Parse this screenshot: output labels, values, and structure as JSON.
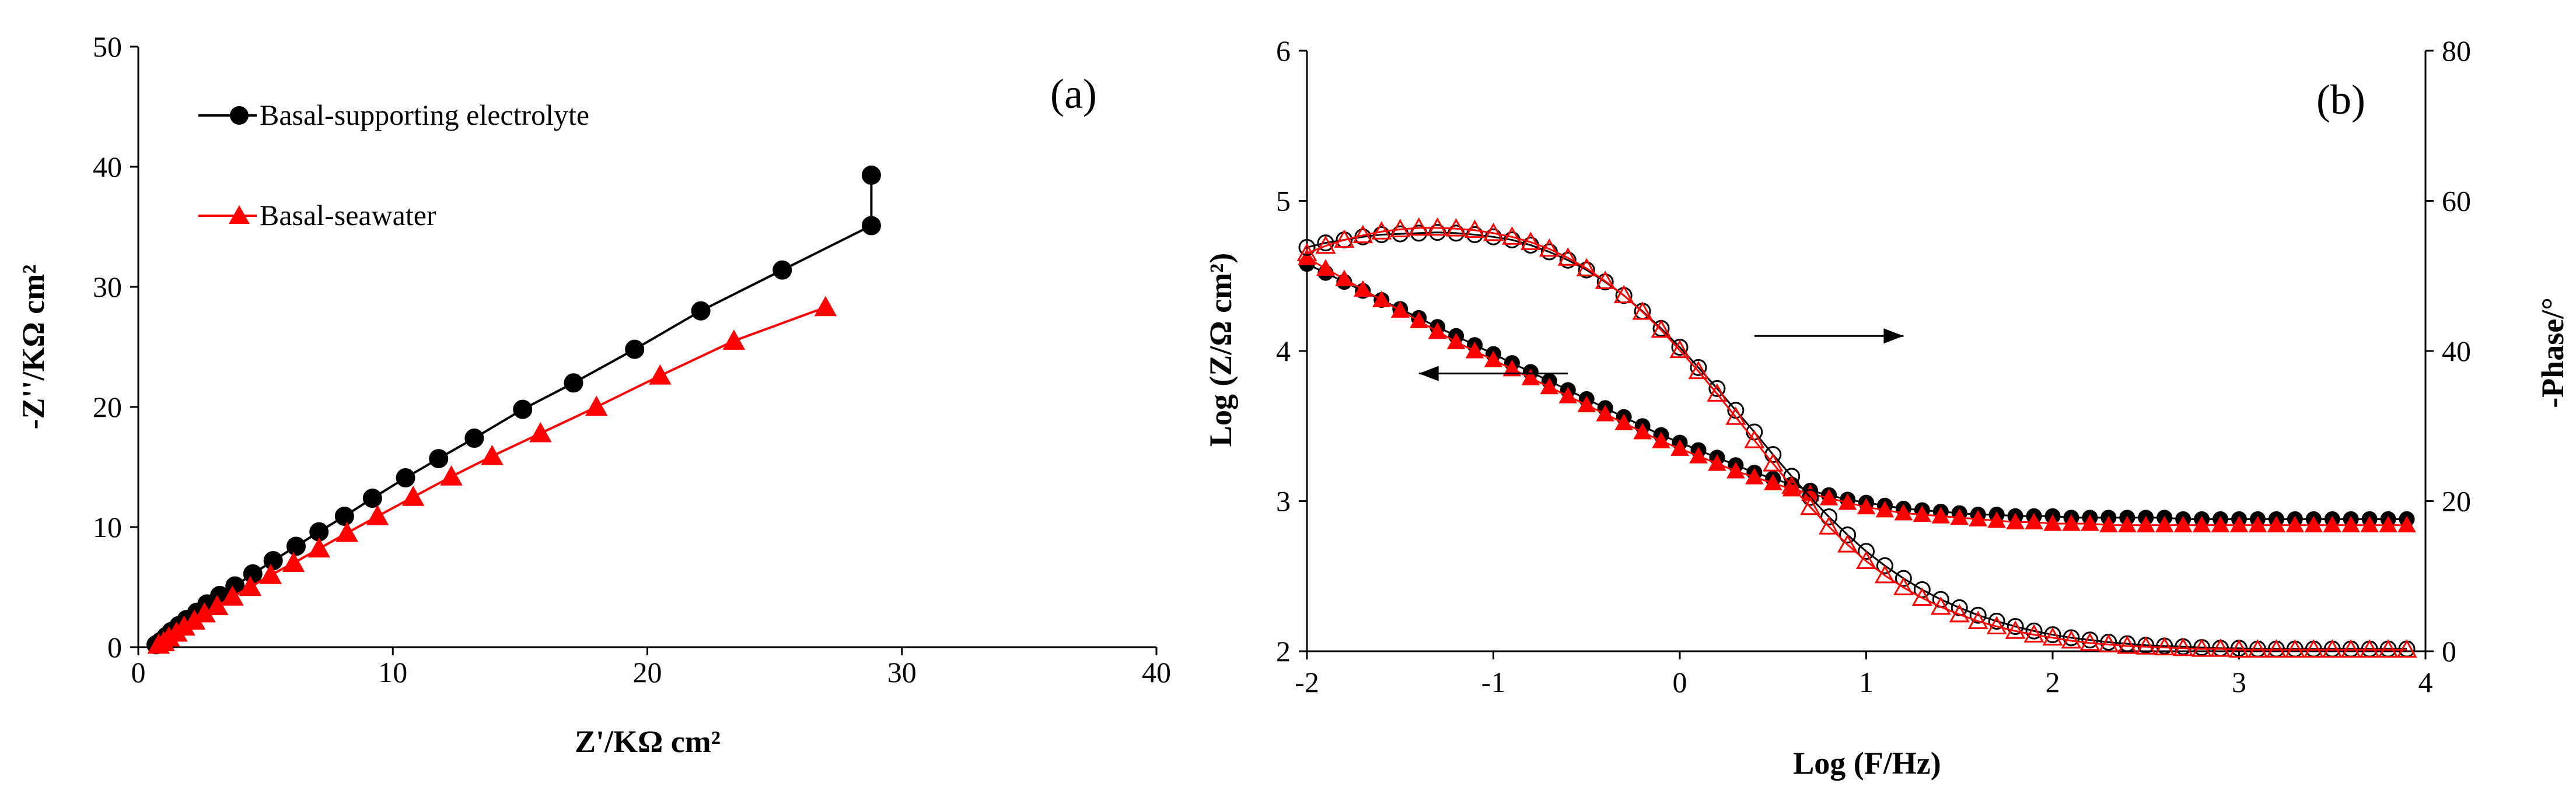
{
  "chart_data": [
    {
      "type": "scatter",
      "panel_label": "(a)",
      "title": "",
      "xlabel": "Z'/KΩ cm²",
      "ylabel": "-Z''/KΩ cm²",
      "xlim": [
        0,
        40
      ],
      "ylim": [
        0,
        50
      ],
      "xticks": [
        "0",
        "10",
        "20",
        "30",
        "40"
      ],
      "yticks": [
        "0",
        "10",
        "20",
        "30",
        "40",
        "50"
      ],
      "legend_position": "top-left",
      "grid": false,
      "series": [
        {
          "name": "Basal-supporting electrolyte",
          "color": "#000000",
          "marker": "circle",
          "x": [
            0.7,
            0.9,
            1.1,
            1.3,
            1.6,
            1.9,
            2.3,
            2.7,
            3.2,
            3.8,
            4.5,
            5.3,
            6.2,
            7.1,
            8.1,
            9.2,
            10.5,
            11.8,
            13.2,
            15.1,
            17.1,
            19.5,
            22.1,
            25.3,
            28.8
          ],
          "y": [
            0.2,
            0.5,
            0.9,
            1.3,
            1.8,
            2.3,
            2.9,
            3.6,
            4.3,
            5.1,
            6.1,
            7.2,
            8.4,
            9.6,
            10.9,
            12.4,
            14.1,
            15.7,
            17.4,
            19.8,
            22.0,
            24.8,
            28.0,
            31.4,
            35.1
          ],
          "x_tail": [],
          "y_tail": []
        },
        {
          "name": "Basal-seawater",
          "color": "#ff0000",
          "marker": "triangle",
          "x": [
            0.8,
            1.0,
            1.2,
            1.5,
            1.8,
            2.2,
            2.6,
            3.1,
            3.7,
            4.4,
            5.2,
            6.1,
            7.1,
            8.2,
            9.4,
            10.8,
            12.3,
            13.9,
            15.8,
            18.0,
            20.5,
            23.4,
            27.0
          ],
          "y": [
            0.2,
            0.4,
            0.8,
            1.2,
            1.7,
            2.2,
            2.8,
            3.4,
            4.2,
            5.0,
            6.0,
            7.0,
            8.2,
            9.5,
            10.9,
            12.5,
            14.2,
            15.9,
            17.8,
            20.0,
            22.6,
            25.5,
            28.3
          ],
          "x_tail": [],
          "y_tail": []
        }
      ],
      "extra_points": {
        "black_x": [
          28.8
        ],
        "black_y": [
          39.3
        ]
      }
    },
    {
      "type": "scatter",
      "panel_label": "(b)",
      "title": "",
      "xlabel": "Log (F/Hz)",
      "ylabel": "Log (Z/Ω cm²)",
      "y2label": "-Phase/°",
      "xlim": [
        -2,
        4
      ],
      "ylim": [
        2,
        6
      ],
      "y2lim": [
        0,
        80
      ],
      "xticks": [
        "-2",
        "-1",
        "0",
        "1",
        "2",
        "3",
        "4"
      ],
      "yticks": [
        "2",
        "3",
        "4",
        "5",
        "6"
      ],
      "y2ticks": [
        "0",
        "20",
        "40",
        "60",
        "80"
      ],
      "grid": false,
      "series": [
        {
          "name": "",
          "color": "#000000",
          "marker": "filled-circle",
          "axis": "left",
          "x": [
            -2.0,
            -1.9,
            -1.8,
            -1.7,
            -1.6,
            -1.5,
            -1.4,
            -1.3,
            -1.2,
            -1.1,
            -1.0,
            -0.9,
            -0.8,
            -0.7,
            -0.6,
            -0.5,
            -0.4,
            -0.3,
            -0.2,
            -0.1,
            0.0,
            0.1,
            0.2,
            0.3,
            0.4,
            0.5,
            0.6,
            0.7,
            0.8,
            0.9,
            1.0,
            1.1,
            1.2,
            1.3,
            1.4,
            1.5,
            1.6,
            1.7,
            1.8,
            1.9,
            2.0,
            2.1,
            2.2,
            2.3,
            2.4,
            2.5,
            2.6,
            2.7,
            2.8,
            2.9,
            3.0,
            3.1,
            3.2,
            3.3,
            3.4,
            3.5,
            3.6,
            3.7,
            3.8,
            3.9
          ],
          "y": [
            4.58,
            4.52,
            4.46,
            4.4,
            4.34,
            4.28,
            4.22,
            4.16,
            4.1,
            4.04,
            3.98,
            3.92,
            3.86,
            3.8,
            3.74,
            3.68,
            3.62,
            3.56,
            3.5,
            3.44,
            3.39,
            3.34,
            3.29,
            3.24,
            3.19,
            3.15,
            3.11,
            3.07,
            3.04,
            3.01,
            2.99,
            2.97,
            2.95,
            2.94,
            2.93,
            2.92,
            2.91,
            2.91,
            2.9,
            2.9,
            2.9,
            2.89,
            2.89,
            2.89,
            2.89,
            2.89,
            2.89,
            2.88,
            2.88,
            2.88,
            2.88,
            2.88,
            2.88,
            2.88,
            2.88,
            2.88,
            2.88,
            2.88,
            2.88,
            2.88
          ]
        },
        {
          "name": "",
          "color": "#ff0000",
          "marker": "filled-triangle",
          "axis": "left",
          "x": [
            -2.0,
            -1.9,
            -1.8,
            -1.7,
            -1.6,
            -1.5,
            -1.4,
            -1.3,
            -1.2,
            -1.1,
            -1.0,
            -0.9,
            -0.8,
            -0.7,
            -0.6,
            -0.5,
            -0.4,
            -0.3,
            -0.2,
            -0.1,
            0.0,
            0.1,
            0.2,
            0.3,
            0.4,
            0.5,
            0.6,
            0.7,
            0.8,
            0.9,
            1.0,
            1.1,
            1.2,
            1.3,
            1.4,
            1.5,
            1.6,
            1.7,
            1.8,
            1.9,
            2.0,
            2.1,
            2.2,
            2.3,
            2.4,
            2.5,
            2.6,
            2.7,
            2.8,
            2.9,
            3.0,
            3.1,
            3.2,
            3.3,
            3.4,
            3.5,
            3.6,
            3.7,
            3.8,
            3.9
          ],
          "y": [
            4.62,
            4.55,
            4.48,
            4.41,
            4.34,
            4.27,
            4.2,
            4.13,
            4.06,
            4.0,
            3.94,
            3.88,
            3.82,
            3.76,
            3.7,
            3.64,
            3.58,
            3.52,
            3.46,
            3.4,
            3.35,
            3.3,
            3.25,
            3.2,
            3.16,
            3.12,
            3.08,
            3.05,
            3.02,
            2.99,
            2.96,
            2.94,
            2.92,
            2.91,
            2.9,
            2.89,
            2.88,
            2.87,
            2.86,
            2.86,
            2.85,
            2.85,
            2.85,
            2.84,
            2.84,
            2.84,
            2.84,
            2.84,
            2.84,
            2.84,
            2.84,
            2.84,
            2.84,
            2.84,
            2.84,
            2.84,
            2.84,
            2.84,
            2.84,
            2.84
          ]
        },
        {
          "name": "",
          "color": "#000000",
          "marker": "open-circle",
          "axis": "right",
          "x": [
            -2.0,
            -1.9,
            -1.8,
            -1.7,
            -1.6,
            -1.5,
            -1.4,
            -1.3,
            -1.2,
            -1.1,
            -1.0,
            -0.9,
            -0.8,
            -0.7,
            -0.6,
            -0.5,
            -0.4,
            -0.3,
            -0.2,
            -0.1,
            0.0,
            0.1,
            0.2,
            0.3,
            0.4,
            0.5,
            0.6,
            0.7,
            0.8,
            0.9,
            1.0,
            1.1,
            1.2,
            1.3,
            1.4,
            1.5,
            1.6,
            1.7,
            1.8,
            1.9,
            2.0,
            2.1,
            2.2,
            2.3,
            2.4,
            2.5,
            2.6,
            2.7,
            2.8,
            2.9,
            3.0,
            3.1,
            3.2,
            3.3,
            3.4,
            3.5,
            3.6,
            3.7,
            3.8,
            3.9
          ],
          "y": [
            53.8,
            54.4,
            54.8,
            55.2,
            55.5,
            55.6,
            55.7,
            55.8,
            55.7,
            55.5,
            55.2,
            54.8,
            54.1,
            53.2,
            52.1,
            50.8,
            49.2,
            47.4,
            45.3,
            43.0,
            40.5,
            37.8,
            35.0,
            32.1,
            29.2,
            26.2,
            23.3,
            20.5,
            17.9,
            15.5,
            13.3,
            11.4,
            9.7,
            8.2,
            6.9,
            5.8,
            4.8,
            4.0,
            3.3,
            2.7,
            2.2,
            1.8,
            1.5,
            1.2,
            1.0,
            0.8,
            0.7,
            0.6,
            0.5,
            0.4,
            0.4,
            0.3,
            0.3,
            0.3,
            0.3,
            0.3,
            0.3,
            0.3,
            0.3,
            0.3
          ]
        },
        {
          "name": "",
          "color": "#ff0000",
          "marker": "open-triangle",
          "axis": "right",
          "x": [
            -2.0,
            -1.9,
            -1.8,
            -1.7,
            -1.6,
            -1.5,
            -1.4,
            -1.3,
            -1.2,
            -1.1,
            -1.0,
            -0.9,
            -0.8,
            -0.7,
            -0.6,
            -0.5,
            -0.4,
            -0.3,
            -0.2,
            -0.1,
            0.0,
            0.1,
            0.2,
            0.3,
            0.4,
            0.5,
            0.6,
            0.7,
            0.8,
            0.9,
            1.0,
            1.1,
            1.2,
            1.3,
            1.4,
            1.5,
            1.6,
            1.7,
            1.8,
            1.9,
            2.0,
            2.1,
            2.2,
            2.3,
            2.4,
            2.5,
            2.6,
            2.7,
            2.8,
            2.9,
            3.0,
            3.1,
            3.2,
            3.3,
            3.4,
            3.5,
            3.6,
            3.7,
            3.8,
            3.9
          ],
          "y": [
            53.0,
            54.0,
            54.8,
            55.4,
            55.9,
            56.2,
            56.4,
            56.4,
            56.3,
            56.1,
            55.7,
            55.2,
            54.5,
            53.6,
            52.4,
            51.0,
            49.3,
            47.4,
            45.2,
            42.8,
            40.1,
            37.3,
            34.3,
            31.2,
            28.1,
            25.0,
            22.0,
            19.2,
            16.6,
            14.2,
            12.0,
            10.1,
            8.5,
            7.1,
            5.9,
            4.9,
            4.0,
            3.3,
            2.7,
            2.2,
            1.8,
            1.4,
            1.1,
            0.9,
            0.7,
            0.6,
            0.5,
            0.4,
            0.3,
            0.3,
            0.2,
            0.2,
            0.2,
            0.2,
            0.2,
            0.2,
            0.2,
            0.2,
            0.2,
            0.2
          ]
        }
      ],
      "annotations": [
        {
          "type": "arrow",
          "direction": "right",
          "x_from": 0.4,
          "x_to": 1.2,
          "y2": 42
        },
        {
          "type": "arrow",
          "direction": "left",
          "x_from": -0.6,
          "x_to": -1.4,
          "y": 3.85
        }
      ]
    }
  ]
}
